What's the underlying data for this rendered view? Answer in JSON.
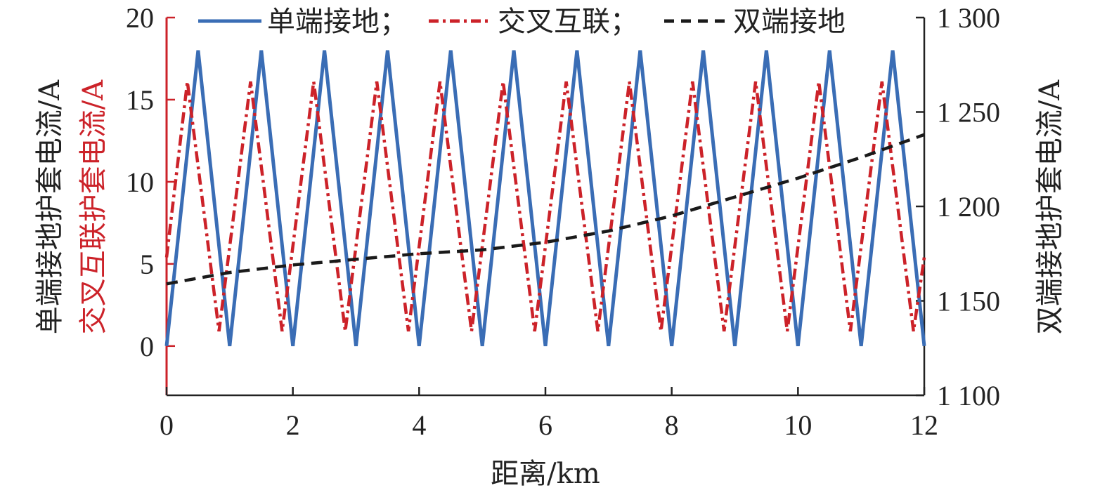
{
  "chart_data": {
    "type": "line",
    "xlabel": "距离/km",
    "ylabel_left": [
      "单端接地护套电流/A",
      "交叉互联护套电流/A"
    ],
    "ylabel_right": "双端接地护套电流/A",
    "xlim": [
      0,
      12
    ],
    "ylim_left": [
      -3,
      20
    ],
    "ylim_right": [
      1100,
      1300
    ],
    "x_ticks": [
      0,
      2,
      4,
      6,
      8,
      10,
      12
    ],
    "x_tick_labels": [
      "0",
      "2",
      "4",
      "6",
      "8",
      "10",
      "12"
    ],
    "y_left_ticks": [
      0,
      5,
      10,
      15,
      20
    ],
    "y_left_tick_labels": [
      "0",
      "5",
      "10",
      "15",
      "20"
    ],
    "y_right_ticks": [
      1100,
      1150,
      1200,
      1250,
      1300
    ],
    "y_right_tick_labels": [
      "1 100",
      "1 150",
      "1 200",
      "1 250",
      "1 300"
    ],
    "grid": false,
    "legend_position": "top",
    "legend_separator": "；",
    "series": [
      {
        "name": "单端接地",
        "axis": "left",
        "style": "solid",
        "color": "#3a6db5",
        "x": [
          0,
          0.5,
          1,
          1.5,
          2,
          2.5,
          3,
          3.5,
          4,
          4.5,
          5,
          5.5,
          6,
          6.5,
          7,
          7.5,
          8,
          8.5,
          9,
          9.5,
          10,
          10.5,
          11,
          11.5,
          12
        ],
        "y": [
          0,
          18,
          0,
          18,
          0,
          18,
          0,
          18,
          0,
          18,
          0,
          18,
          0,
          18,
          0,
          18,
          0,
          18,
          0,
          18,
          0,
          18,
          0,
          18,
          0
        ]
      },
      {
        "name": "交叉互联",
        "axis": "left",
        "style": "dashdot",
        "color": "#cc2229",
        "x": [
          0,
          0.33,
          0.83,
          1.33,
          1.83,
          2.33,
          2.83,
          3.33,
          3.83,
          4.33,
          4.83,
          5.33,
          5.83,
          6.33,
          6.83,
          7.33,
          7.83,
          8.33,
          8.83,
          9.33,
          9.83,
          10.33,
          10.83,
          11.33,
          11.83,
          12
        ],
        "y": [
          5.4,
          16.1,
          0.9,
          16.1,
          0.9,
          16.1,
          0.9,
          16.1,
          0.9,
          16.1,
          0.9,
          16.1,
          0.9,
          16.1,
          0.9,
          16.1,
          0.9,
          16.1,
          0.9,
          16.1,
          0.9,
          16.1,
          0.9,
          16.1,
          0.9,
          5.4
        ]
      },
      {
        "name": "双端接地",
        "axis": "right",
        "style": "dashed",
        "color": "#1a1a1a",
        "x": [
          0,
          1,
          2,
          3,
          4,
          5,
          6,
          7,
          8,
          9,
          10,
          11,
          12
        ],
        "y": [
          1159,
          1165,
          1169,
          1172,
          1175,
          1177,
          1181,
          1187,
          1195,
          1205,
          1215,
          1226,
          1238
        ]
      }
    ],
    "colors": {
      "axis": "#222222",
      "left_axis_accent": "#cc2229",
      "title_left_1": "#222222",
      "title_left_2": "#cc2229",
      "title_right": "#222222"
    }
  }
}
